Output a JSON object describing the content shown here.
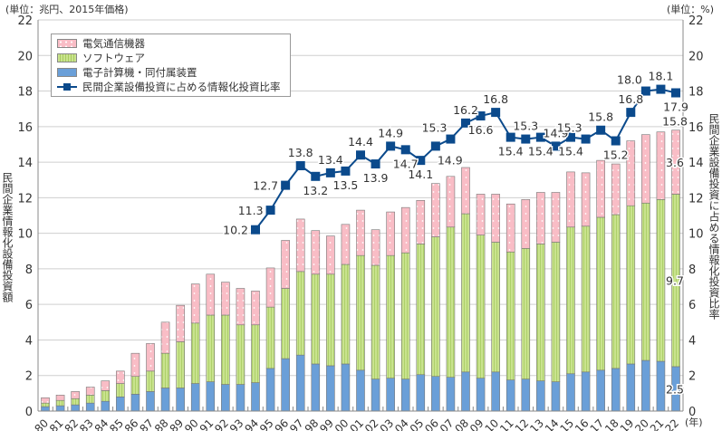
{
  "chart_data": {
    "type": "bar+line",
    "unit_left": "(単位：兆円、2015年価格)",
    "unit_right": "(単位：%)",
    "xlabel": "(年)",
    "ylabel_left": "民間企業情報化設備投資額",
    "ylabel_right": "民間企業設備投資に占める情報化投資比率",
    "ylim_left": [
      0,
      22
    ],
    "ylim_right": [
      0,
      22
    ],
    "yticks": [
      "0",
      "2",
      "4",
      "6",
      "8",
      "10",
      "12",
      "14",
      "16",
      "18",
      "20",
      "22"
    ],
    "grid": true,
    "legend_position": "top-left",
    "categories": [
      "80",
      "81",
      "82",
      "83",
      "84",
      "85",
      "86",
      "87",
      "88",
      "89",
      "90",
      "91",
      "92",
      "93",
      "94",
      "95",
      "96",
      "97",
      "98",
      "99",
      "00",
      "01",
      "02",
      "03",
      "04",
      "05",
      "06",
      "07",
      "08",
      "09",
      "10",
      "11",
      "12",
      "13",
      "14",
      "15",
      "16",
      "17",
      "18",
      "19",
      "20",
      "21",
      "22"
    ],
    "series": [
      {
        "name": "電子計算機・同付属装置",
        "kind": "bar",
        "color": "#6a9fd8",
        "values": [
          0.25,
          0.3,
          0.35,
          0.45,
          0.55,
          0.8,
          0.95,
          1.1,
          1.3,
          1.3,
          1.55,
          1.65,
          1.5,
          1.5,
          1.6,
          2.4,
          2.95,
          3.15,
          2.65,
          2.55,
          2.65,
          2.3,
          1.8,
          1.85,
          1.8,
          2.05,
          1.95,
          1.9,
          2.2,
          1.85,
          2.2,
          1.75,
          1.8,
          1.7,
          1.65,
          2.1,
          2.2,
          2.3,
          2.4,
          2.65,
          2.85,
          2.8,
          2.5
        ]
      },
      {
        "name": "ソフトウェア",
        "kind": "bar",
        "color": "#c5e08a",
        "values": [
          0.2,
          0.3,
          0.35,
          0.45,
          0.6,
          0.75,
          1.0,
          1.15,
          1.95,
          2.6,
          3.4,
          3.75,
          3.9,
          3.35,
          3.25,
          3.45,
          3.95,
          4.7,
          5.05,
          5.15,
          5.6,
          6.45,
          6.4,
          6.9,
          7.1,
          7.35,
          7.85,
          8.45,
          8.9,
          8.05,
          7.3,
          7.2,
          7.35,
          7.7,
          7.85,
          8.25,
          8.2,
          8.6,
          8.65,
          8.9,
          8.85,
          9.1,
          9.7
        ]
      },
      {
        "name": "電気通信機器",
        "kind": "bar",
        "color": "#f9bdc6",
        "values": [
          0.3,
          0.3,
          0.4,
          0.45,
          0.55,
          0.7,
          1.3,
          1.55,
          1.75,
          2.05,
          2.2,
          2.3,
          1.85,
          2.05,
          1.9,
          2.2,
          2.7,
          2.95,
          2.45,
          2.15,
          2.25,
          2.55,
          2.0,
          2.45,
          2.55,
          2.45,
          3.0,
          2.85,
          2.6,
          2.3,
          2.7,
          2.7,
          2.75,
          2.9,
          2.8,
          3.1,
          3.0,
          3.2,
          2.85,
          3.65,
          3.85,
          3.8,
          3.6
        ]
      },
      {
        "name": "民間企業設備投資に占める情報化投資比率",
        "kind": "line",
        "color": "#0b4a8c",
        "values": [
          null,
          null,
          null,
          null,
          null,
          null,
          null,
          null,
          null,
          null,
          null,
          null,
          null,
          null,
          10.2,
          11.3,
          12.7,
          13.8,
          13.2,
          13.4,
          13.5,
          14.4,
          13.9,
          14.9,
          14.7,
          14.1,
          14.9,
          15.3,
          16.2,
          16.6,
          16.8,
          15.4,
          15.3,
          15.4,
          14.9,
          15.4,
          15.3,
          15.8,
          15.2,
          16.8,
          18.0,
          18.1,
          17.9
        ],
        "labels": [
          null,
          null,
          null,
          null,
          null,
          null,
          null,
          null,
          null,
          null,
          null,
          null,
          null,
          null,
          "10.2",
          "11.3",
          "12.7",
          "13.8",
          "13.2",
          "13.4",
          "13.5",
          "14.4",
          "13.9",
          "14.9",
          "14.7",
          "14.1",
          "14.9",
          "15.3",
          "16.2",
          "16.6",
          "16.8",
          "15.4",
          "15.3",
          "15.4",
          "14.9",
          "15.4",
          "15.3",
          "15.8",
          "15.2",
          "16.8",
          "18.0",
          "18.1",
          "17.9"
        ]
      }
    ],
    "annotations_2022": {
      "computers": "2.5",
      "software": "9.7",
      "telecom": "3.6",
      "total": "15.8"
    }
  }
}
